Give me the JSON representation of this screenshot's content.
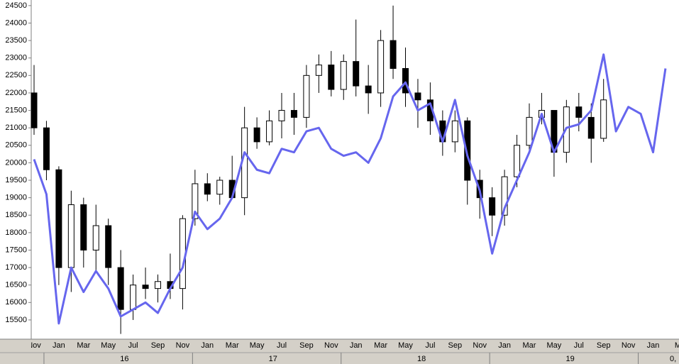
{
  "chart_data": {
    "type": "candlestick",
    "categories": [
      "Nov",
      null,
      "Jan",
      null,
      "Mar",
      null,
      "May",
      null,
      "Jul",
      null,
      "Sep",
      null,
      "Nov",
      null,
      "Jan",
      null,
      "Mar",
      null,
      "May",
      null,
      "Jul",
      null,
      "Sep",
      null,
      "Nov",
      null,
      "Jan",
      null,
      "Mar",
      null,
      "May",
      null,
      "Jul",
      null,
      "Sep",
      null,
      "Nov",
      null,
      "Jan",
      null,
      "Mar",
      null,
      "May",
      null,
      "Jul",
      null,
      "Sep",
      null,
      "Nov",
      null,
      "Jan",
      null,
      "M"
    ],
    "years": [
      "16",
      "17",
      "18",
      "19"
    ],
    "corner_label": "0,",
    "open": [
      22000,
      21000,
      19800,
      17000,
      18800,
      17500,
      18200,
      17000,
      15800,
      16500,
      16400,
      16600,
      16400,
      18400,
      19400,
      19100,
      19500,
      19000,
      21000,
      20600,
      21200,
      21500,
      21300,
      22500,
      22800,
      22100,
      22900,
      22200,
      22000,
      23500,
      22700,
      22000,
      21800,
      21200,
      20600,
      21200,
      19500,
      19000,
      18500,
      19600,
      20500,
      21300,
      21500,
      20300,
      21600,
      21300,
      20700,
      null,
      null,
      null,
      null,
      null,
      null
    ],
    "high": [
      22800,
      21200,
      19900,
      19200,
      19000,
      18800,
      18400,
      17500,
      16800,
      17000,
      16800,
      17400,
      18500,
      19800,
      19700,
      19600,
      20200,
      21600,
      21300,
      21500,
      22000,
      22000,
      22800,
      23100,
      23200,
      23100,
      24100,
      22800,
      23800,
      24500,
      23300,
      22400,
      22300,
      21500,
      21500,
      21300,
      19800,
      19300,
      19800,
      20800,
      21700,
      22000,
      21500,
      21800,
      22000,
      21700,
      22400,
      null,
      null,
      null,
      null,
      null,
      null
    ],
    "low": [
      20800,
      19500,
      16500,
      16300,
      17000,
      16900,
      16500,
      15100,
      15500,
      16100,
      16000,
      16100,
      15800,
      18200,
      18900,
      18800,
      19000,
      18500,
      20400,
      20500,
      20700,
      20800,
      21000,
      22000,
      21900,
      21800,
      21900,
      21400,
      21600,
      22400,
      21600,
      21000,
      20800,
      20200,
      20300,
      18800,
      18400,
      17900,
      18200,
      19300,
      20300,
      21100,
      19600,
      20000,
      20900,
      20000,
      20600,
      null,
      null,
      null,
      null,
      null,
      null
    ],
    "close": [
      21000,
      19800,
      17000,
      18800,
      17500,
      18200,
      17000,
      15800,
      16500,
      16400,
      16600,
      16400,
      18400,
      19400,
      19100,
      19500,
      19000,
      21000,
      20600,
      21200,
      21500,
      21300,
      22500,
      22800,
      22100,
      22900,
      22200,
      22000,
      23500,
      22700,
      22000,
      21800,
      21200,
      20600,
      21200,
      19500,
      19000,
      18500,
      19600,
      20500,
      21300,
      21500,
      20300,
      21600,
      21300,
      20700,
      21800,
      null,
      null,
      null,
      null,
      null,
      null
    ],
    "line": {
      "color": "#6666ee",
      "values": [
        20100,
        19100,
        15400,
        17000,
        16300,
        16900,
        16400,
        15600,
        15800,
        16000,
        15700,
        16400,
        17000,
        18600,
        18100,
        18400,
        19000,
        20300,
        19800,
        19700,
        20400,
        20300,
        20900,
        21000,
        20400,
        20200,
        20300,
        20000,
        20700,
        21900,
        22300,
        21500,
        21700,
        20600,
        21800,
        20200,
        19200,
        17400,
        18700,
        19500,
        20300,
        21400,
        20300,
        21000,
        21100,
        21500,
        23100,
        20900,
        21600,
        21400,
        20300,
        22700,
        null
      ]
    },
    "ylim": [
      14950,
      24660
    ],
    "yticks": [
      15500,
      16000,
      16500,
      17000,
      17500,
      18000,
      18500,
      19000,
      19500,
      20000,
      20500,
      21000,
      21500,
      22000,
      22500,
      23000,
      23500,
      24000,
      24500
    ]
  }
}
